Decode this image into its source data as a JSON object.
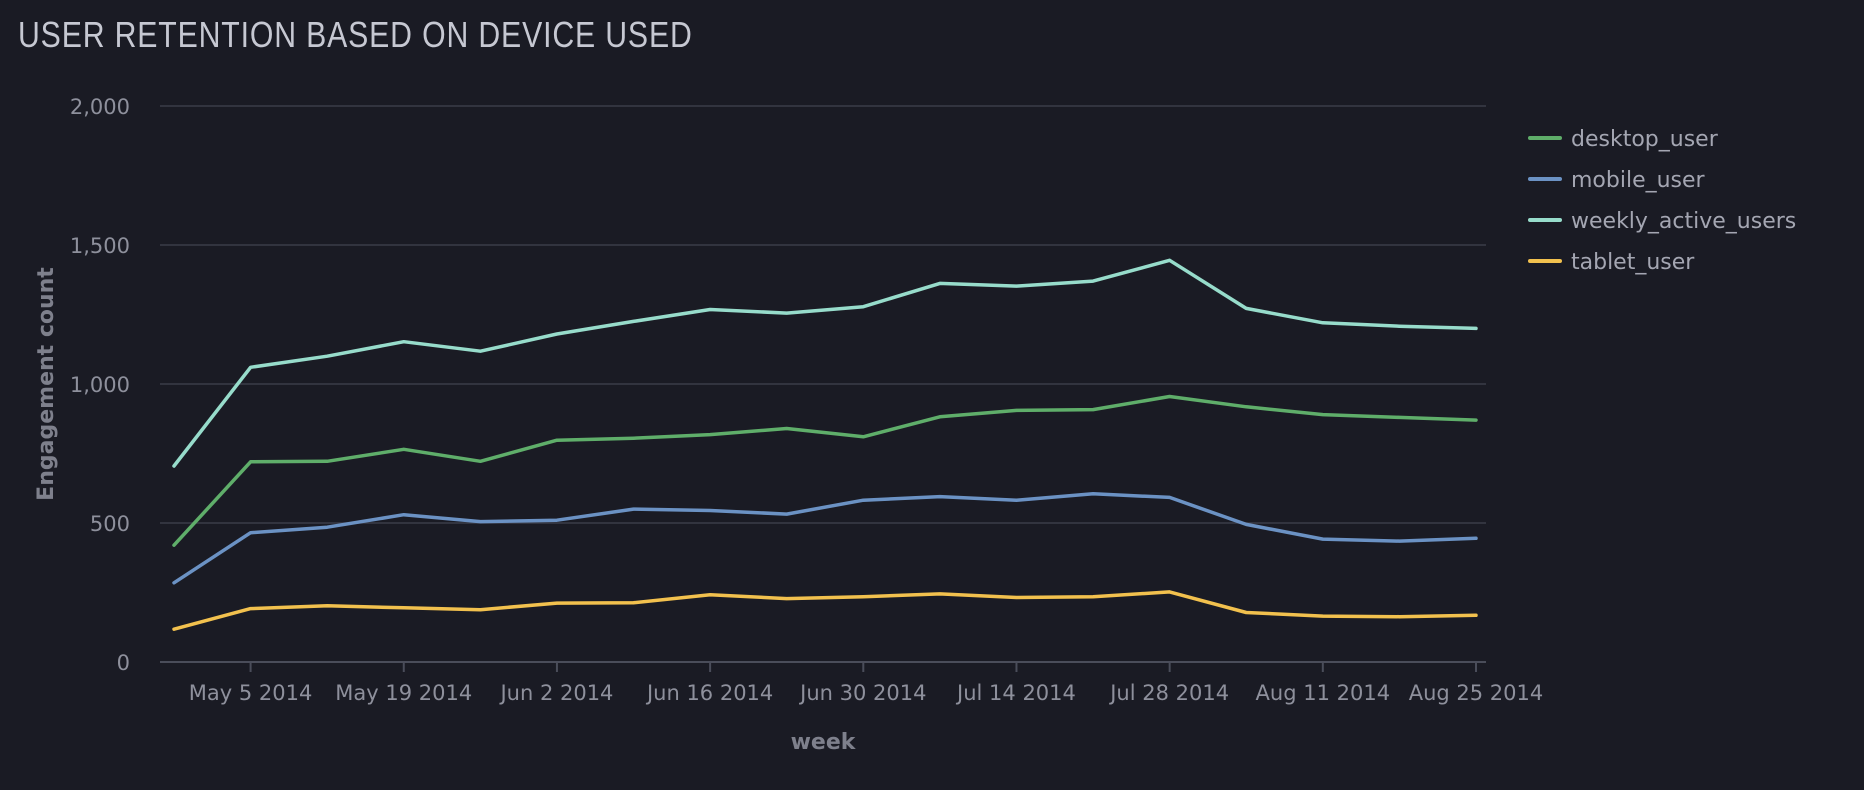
{
  "chart_data": {
    "type": "line",
    "title": "USER RETENTION BASED ON DEVICE USED",
    "xlabel": "week",
    "ylabel": "Engagement count",
    "ylim": [
      0,
      2000
    ],
    "yticks": [
      0,
      500,
      1000,
      1500,
      2000
    ],
    "ytick_labels": [
      "0",
      "500",
      "1,000",
      "1,500",
      "2,000"
    ],
    "x": [
      "2014-04-28",
      "2014-05-05",
      "2014-05-12",
      "2014-05-19",
      "2014-05-26",
      "2014-06-02",
      "2014-06-09",
      "2014-06-16",
      "2014-06-23",
      "2014-06-30",
      "2014-07-07",
      "2014-07-14",
      "2014-07-21",
      "2014-07-28",
      "2014-08-04",
      "2014-08-11",
      "2014-08-18",
      "2014-08-25"
    ],
    "xticks": [
      "2014-05-05",
      "2014-05-19",
      "2014-06-02",
      "2014-06-16",
      "2014-06-30",
      "2014-07-14",
      "2014-07-28",
      "2014-08-11",
      "2014-08-25"
    ],
    "xtick_labels": [
      "May 5 2014",
      "May 19 2014",
      "Jun 2 2014",
      "Jun 16 2014",
      "Jun 30 2014",
      "Jul 14 2014",
      "Jul 28 2014",
      "Aug 11 2014",
      "Aug 25 2014"
    ],
    "grid": true,
    "legend_position": "top-right",
    "series": [
      {
        "name": "desktop_user",
        "color": "#5fae6a",
        "values": [
          420,
          720,
          722,
          765,
          722,
          798,
          805,
          818,
          840,
          810,
          882,
          905,
          908,
          955,
          918,
          890,
          880,
          870
        ]
      },
      {
        "name": "mobile_user",
        "color": "#6b92c4",
        "values": [
          285,
          465,
          485,
          530,
          505,
          510,
          550,
          545,
          532,
          582,
          595,
          582,
          605,
          592,
          495,
          442,
          435,
          445
        ]
      },
      {
        "name": "weekly_active_users",
        "color": "#97dccb",
        "values": [
          705,
          1060,
          1100,
          1152,
          1118,
          1180,
          1225,
          1268,
          1255,
          1278,
          1362,
          1352,
          1370,
          1445,
          1272,
          1220,
          1208,
          1200
        ]
      },
      {
        "name": "tablet_user",
        "color": "#f2c14e",
        "values": [
          118,
          192,
          202,
          195,
          188,
          212,
          213,
          242,
          228,
          235,
          245,
          232,
          235,
          252,
          178,
          165,
          163,
          168
        ]
      }
    ]
  }
}
